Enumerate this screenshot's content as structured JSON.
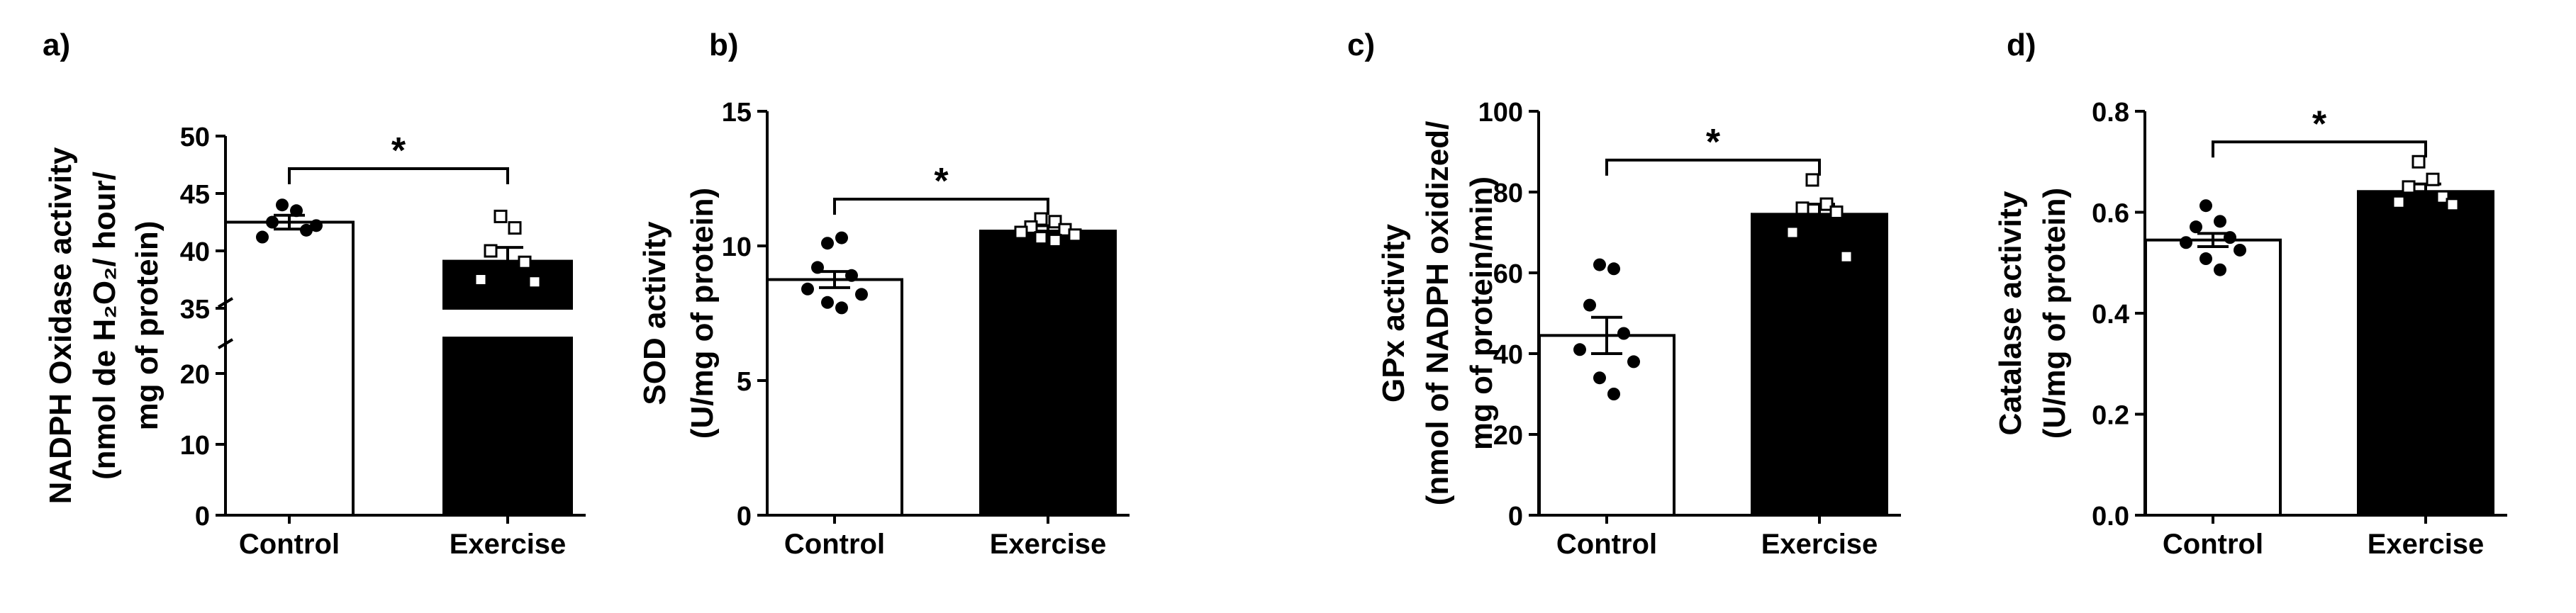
{
  "colors": {
    "control_bar": "#ffffff",
    "exercise_bar": "#000000",
    "ink": "#000000"
  },
  "chart_data": [
    {
      "panel_label": "a)",
      "type": "bar",
      "categories": [
        "Control",
        "Exercise"
      ],
      "values": [
        42.5,
        39.1
      ],
      "sem": [
        0.6,
        1.2
      ],
      "ylabel_lines": [
        "NADPH Oxidase activity",
        "(nmol de H₂O₂/ hour/",
        "mg of protein)"
      ],
      "axis_break": {
        "from": 25,
        "to": 35
      },
      "ylim": [
        0,
        50
      ],
      "yticks": [
        0,
        10,
        20,
        35,
        40,
        45,
        50
      ],
      "significance": "*",
      "points": [
        [
          44.0,
          43.5,
          42.5,
          41.8,
          41.2,
          42.2
        ],
        [
          43.0,
          42.0,
          40.0,
          39.0,
          37.5,
          37.3
        ]
      ]
    },
    {
      "panel_label": "b)",
      "type": "bar",
      "categories": [
        "Control",
        "Exercise"
      ],
      "values": [
        8.75,
        10.55
      ],
      "sem": [
        0.3,
        0.2
      ],
      "ylabel_lines": [
        "SOD activity",
        "(U/mg of protein)"
      ],
      "ylim": [
        0,
        15
      ],
      "yticks": [
        0,
        5,
        10,
        15
      ],
      "significance": "*",
      "points": [
        [
          10.1,
          10.3,
          9.2,
          8.9,
          8.4,
          8.2,
          7.9,
          7.7
        ],
        [
          11.0,
          10.9,
          10.7,
          10.6,
          10.5,
          10.4,
          10.3,
          10.2
        ]
      ]
    },
    {
      "panel_label": "c)",
      "type": "bar",
      "categories": [
        "Control",
        "Exercise"
      ],
      "values": [
        44.5,
        74.5
      ],
      "sem": [
        4.5,
        2.5
      ],
      "ylabel_lines": [
        "GPx activity",
        "(nmol of NADPH oxidized/",
        "mg of protein/min)"
      ],
      "ylim": [
        0,
        100
      ],
      "yticks": [
        0,
        20,
        40,
        60,
        80,
        100
      ],
      "significance": "*",
      "points": [
        [
          62.0,
          61.0,
          52.0,
          45.0,
          41.0,
          38.0,
          34.0,
          30.0
        ],
        [
          83.0,
          77.0,
          76.0,
          75.0,
          70.0,
          64.0
        ]
      ]
    },
    {
      "panel_label": "d)",
      "type": "bar",
      "categories": [
        "Control",
        "Exercise"
      ],
      "values": [
        0.545,
        0.641
      ],
      "sem": [
        0.013,
        0.015
      ],
      "ylabel_lines": [
        "Catalase activity",
        "(U/mg of protein)"
      ],
      "ylim": [
        0.0,
        0.8
      ],
      "yticks": [
        0.0,
        0.2,
        0.4,
        0.6,
        0.8
      ],
      "ytick_decimals": 1,
      "significance": "*",
      "points": [
        [
          0.613,
          0.582,
          0.571,
          0.55,
          0.54,
          0.525,
          0.508,
          0.486
        ],
        [
          0.7,
          0.665,
          0.65,
          0.63,
          0.62,
          0.615
        ]
      ]
    }
  ]
}
